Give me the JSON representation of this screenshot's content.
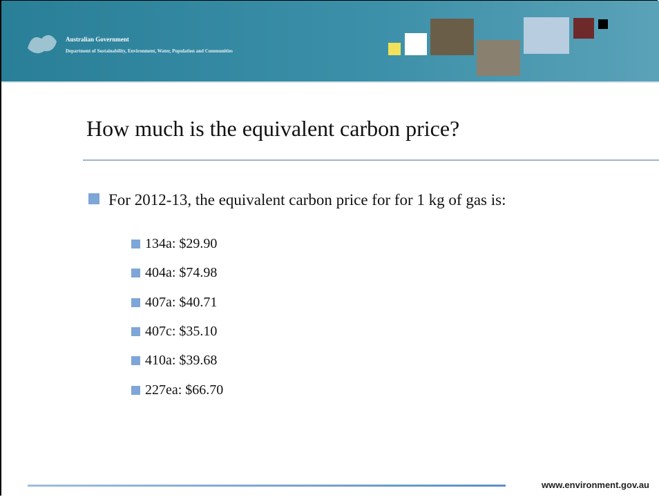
{
  "header": {
    "organisation": "Australian Government",
    "department": "Department of Sustainability, Environment, Water, Population and Communities"
  },
  "title": "How much is the equivalent carbon price?",
  "bullet": "For 2012-13, the equivalent carbon price for for 1 kg of gas is:",
  "items": [
    "134a: $29.90",
    "404a: $74.98",
    "407a: $40.71",
    "407c: $35.10",
    "410a: $39.68",
    "227ea: $66.70"
  ],
  "footer": "www.environment.gov.au"
}
